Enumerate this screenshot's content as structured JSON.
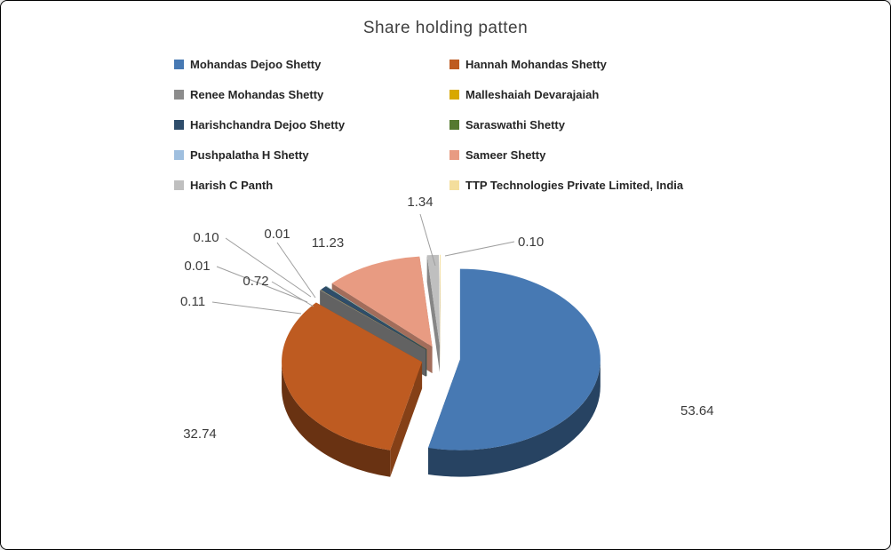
{
  "title": "Share holding patten",
  "colors": {
    "background": "#ffffff",
    "frame_border": "#000000",
    "title_text": "#3f3f3f",
    "label_text": "#3b3b3b",
    "leader_line": "#9e9e9e"
  },
  "chart_data": {
    "type": "pie",
    "style": "3d-exploded",
    "title": "Share holding patten",
    "unit": "percent",
    "legend_position": "top, two columns",
    "grid": false,
    "series": [
      {
        "name": "Mohandas Dejoo Shetty",
        "value": 53.64,
        "color": "#4779B3"
      },
      {
        "name": "Hannah Mohandas Shetty",
        "value": 32.74,
        "color": "#BE5B21"
      },
      {
        "name": "Renee Mohandas Shetty",
        "value": 0.11,
        "color": "#8C8C8C"
      },
      {
        "name": "Malleshaiah Devarajaiah",
        "value": 0.01,
        "color": "#D8A800"
      },
      {
        "name": "Harishchandra Dejoo Shetty",
        "value": 0.72,
        "color": "#2E4D6B"
      },
      {
        "name": "Saraswathi Shetty",
        "value": 0.01,
        "color": "#55792F"
      },
      {
        "name": "Pushpalatha H Shetty",
        "value": 0.1,
        "color": "#9FBFDF"
      },
      {
        "name": "Sameer Shetty",
        "value": 11.23,
        "color": "#E89B82"
      },
      {
        "name": "Harish C Panth",
        "value": 1.34,
        "color": "#BFBFBF"
      },
      {
        "name": "TTP Technologies Private Limited, India",
        "value": 0.1,
        "color": "#F4DE9C"
      }
    ]
  }
}
